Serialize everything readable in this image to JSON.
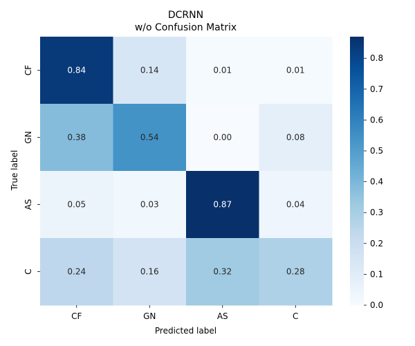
{
  "chart_data": {
    "type": "heatmap",
    "title": "DCRNN",
    "subtitle": "w/o Confusion Matrix",
    "xlabel": "Predicted label",
    "ylabel": "True label",
    "x_categories": [
      "CF",
      "GN",
      "AS",
      "C"
    ],
    "y_categories": [
      "CF",
      "GN",
      "AS",
      "C"
    ],
    "values": [
      [
        0.84,
        0.14,
        0.01,
        0.01
      ],
      [
        0.38,
        0.54,
        0.0,
        0.08
      ],
      [
        0.05,
        0.03,
        0.87,
        0.04
      ],
      [
        0.24,
        0.16,
        0.32,
        0.28
      ]
    ],
    "value_labels": [
      [
        "0.84",
        "0.14",
        "0.01",
        "0.01"
      ],
      [
        "0.38",
        "0.54",
        "0.00",
        "0.08"
      ],
      [
        "0.05",
        "0.03",
        "0.87",
        "0.04"
      ],
      [
        "0.24",
        "0.16",
        "0.32",
        "0.28"
      ]
    ],
    "colormap": "Blues",
    "color_range": [
      0.0,
      0.87
    ],
    "colorbar_ticks": [
      "0.0",
      "0.1",
      "0.2",
      "0.3",
      "0.4",
      "0.5",
      "0.6",
      "0.7",
      "0.8"
    ],
    "grid": false,
    "legend": "colorbar-right"
  }
}
